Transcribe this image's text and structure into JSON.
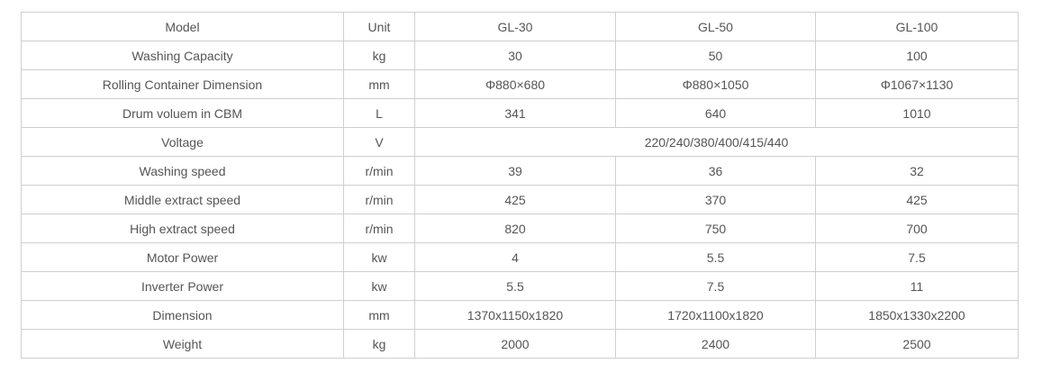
{
  "header": {
    "param": "Model",
    "unit": "Unit",
    "models": [
      "GL-30",
      "GL-50",
      "GL-100"
    ]
  },
  "rows": [
    {
      "param": "Washing Capacity",
      "unit": "kg",
      "values": [
        "30",
        "50",
        "100"
      ]
    },
    {
      "param": "Rolling Container Dimension",
      "unit": "mm",
      "values": [
        "Φ880×680",
        "Φ880×1050",
        "Φ1067×1130"
      ]
    },
    {
      "param": "Drum voluem in CBM",
      "unit": "L",
      "values": [
        "341",
        "640",
        "1010"
      ]
    },
    {
      "param": "Voltage",
      "unit": "V",
      "shared_value": "220/240/380/400/415/440"
    },
    {
      "param": "Washing speed",
      "unit": "r/min",
      "values": [
        "39",
        "36",
        "32"
      ]
    },
    {
      "param": "Middle extract speed",
      "unit": "r/min",
      "values": [
        "425",
        "370",
        "425"
      ]
    },
    {
      "param": "High extract speed",
      "unit": "r/min",
      "values": [
        "820",
        "750",
        "700"
      ]
    },
    {
      "param": "Motor Power",
      "unit": "kw",
      "values": [
        "4",
        "5.5",
        "7.5"
      ]
    },
    {
      "param": "Inverter Power",
      "unit": "kw",
      "values": [
        "5.5",
        "7.5",
        "11"
      ]
    },
    {
      "param": "Dimension",
      "unit": "mm",
      "values": [
        "1370x1150x1820",
        "1720x1100x1820",
        "1850x1330x2200"
      ]
    },
    {
      "param": "Weight",
      "unit": "kg",
      "values": [
        "2000",
        "2400",
        "2500"
      ]
    }
  ]
}
